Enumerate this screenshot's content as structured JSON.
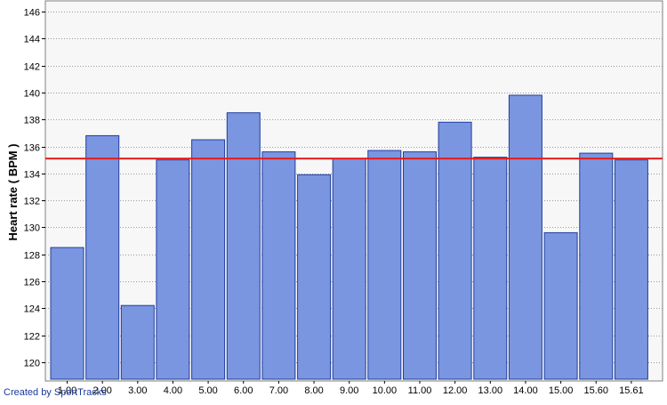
{
  "chart_data": {
    "type": "bar",
    "ylabel": "Heart rate ( BPM )",
    "xlabel": "",
    "ylim": [
      118.6,
      146.8
    ],
    "yticks": [
      120,
      122,
      124,
      126,
      128,
      130,
      132,
      134,
      136,
      138,
      140,
      142,
      144,
      146
    ],
    "categories": [
      "1.00",
      "2.00",
      "3.00",
      "4.00",
      "5.00",
      "6.00",
      "7.00",
      "8.00",
      "9.00",
      "10.00",
      "11.00",
      "12.00",
      "13.00",
      "14.00",
      "15.00",
      "15.60",
      "15.61"
    ],
    "values": [
      128.5,
      136.8,
      124.2,
      135.0,
      136.5,
      138.5,
      135.6,
      133.9,
      135.1,
      135.7,
      135.6,
      137.8,
      135.2,
      139.8,
      129.6,
      135.5,
      135.0
    ],
    "average_line": 135.1,
    "grid": true,
    "legend": "none",
    "colors": {
      "bar_fill": "#7b96e0",
      "bar_edge": "#1f3d9e",
      "average": "#e51c1c",
      "plot_bg": "#f7f7f7",
      "grid": "#9a9a9a"
    }
  },
  "credit": "Created by SportTracks"
}
